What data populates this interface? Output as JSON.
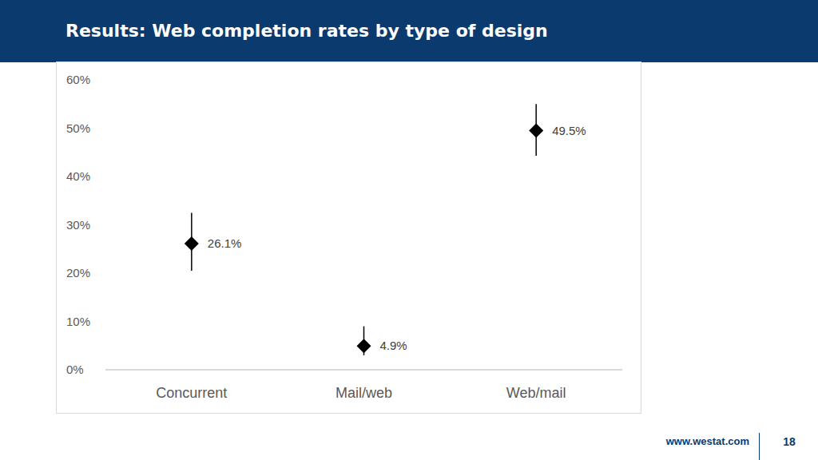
{
  "chart_data": {
    "type": "scatter",
    "title": "Results: Web completion rates by type of design",
    "categories": [
      "Concurrent",
      "Mail/web",
      "Web/mail"
    ],
    "values": [
      26.1,
      4.9,
      49.5
    ],
    "value_labels": [
      "26.1%",
      "4.9%",
      "49.5%"
    ],
    "error_minus": [
      5.6,
      1.9,
      5.2
    ],
    "error_plus": [
      6.4,
      4.1,
      5.5
    ],
    "color": "#000000",
    "marker": "diamond",
    "data_labels": true,
    "grid": false,
    "ylim": [
      0,
      60
    ],
    "yticks": [
      {
        "value": 0,
        "label": "0%"
      },
      {
        "value": 10,
        "label": "10%"
      },
      {
        "value": 20,
        "label": "20%"
      },
      {
        "value": 30,
        "label": "30%"
      },
      {
        "value": 40,
        "label": "40%"
      },
      {
        "value": 50,
        "label": "50%"
      },
      {
        "value": 60,
        "label": "60%"
      }
    ]
  },
  "footer": {
    "url": "www.westat.com",
    "page_number": 18
  }
}
